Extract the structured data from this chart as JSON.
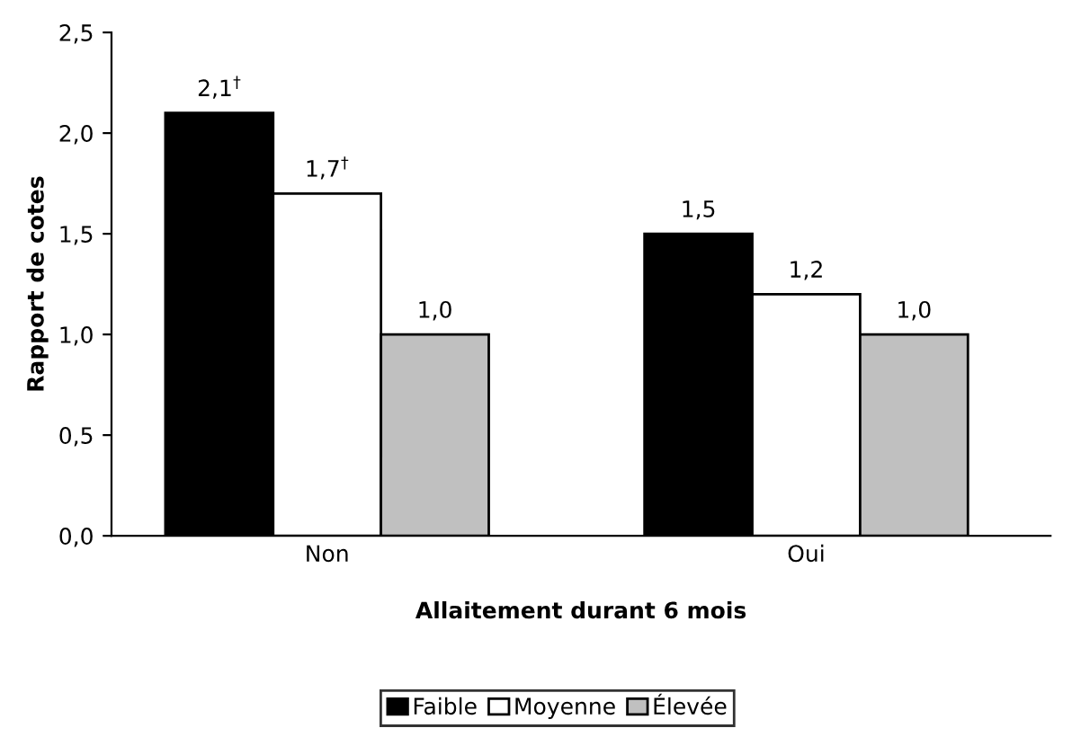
{
  "chart_data": {
    "type": "bar",
    "xlabel": "Allaitement durant 6 mois",
    "ylabel": "Rapport de cotes",
    "categories": [
      "Non",
      "Oui"
    ],
    "series": [
      {
        "name": "Faible",
        "color": "#000000",
        "values": [
          2.1,
          1.5
        ],
        "value_labels": [
          "2,1$^{†}$",
          "1,5"
        ]
      },
      {
        "name": "Moyenne",
        "color": "#ffffff",
        "values": [
          1.7,
          1.2
        ],
        "value_labels": [
          "1,7$^{†}$",
          "1,2"
        ]
      },
      {
        "name": "Élevée",
        "color": "#c0c0c0",
        "values": [
          1.0,
          1.0
        ],
        "value_labels": [
          "1,0",
          "1,0"
        ]
      }
    ],
    "ylim": [
      0,
      2.5
    ],
    "yticks": [
      {
        "value": 0,
        "label": "0,0"
      },
      {
        "value": 0.5,
        "label": "0,5"
      },
      {
        "value": 1,
        "label": "1,0"
      },
      {
        "value": 1.5,
        "label": "1,5"
      },
      {
        "value": 2,
        "label": "2,0"
      },
      {
        "value": 2.5,
        "label": "2,5"
      }
    ],
    "grid": false,
    "legend": "bottom"
  }
}
